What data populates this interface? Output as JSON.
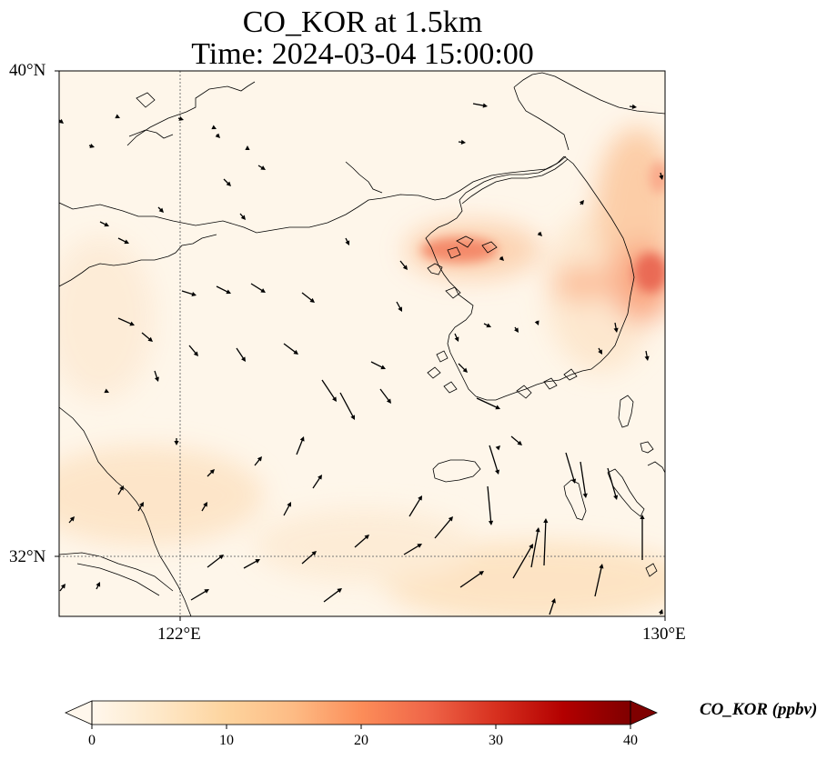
{
  "title": {
    "line1": "CO_KOR at 1.5km",
    "line2": "Time: 2024-03-04 15:00:00"
  },
  "map": {
    "lat_labels": [
      "40°N",
      "32°N"
    ],
    "lon_labels": [
      "122°E",
      "130°E"
    ],
    "gridlines": "dotted",
    "background_color": "#fef6ea"
  },
  "colorbar": {
    "label": "CO_KOR (ppbv)",
    "colormap": "OrRd",
    "ticks": [
      "0",
      "10",
      "20",
      "30",
      "40"
    ],
    "min": 0,
    "max": 40,
    "extend": "both",
    "stops": [
      "#fff7ec",
      "#fee8c8",
      "#fdd49e",
      "#fdbb84",
      "#fc8d59",
      "#ef6548",
      "#d7301f",
      "#b30000",
      "#7f0000"
    ]
  }
}
